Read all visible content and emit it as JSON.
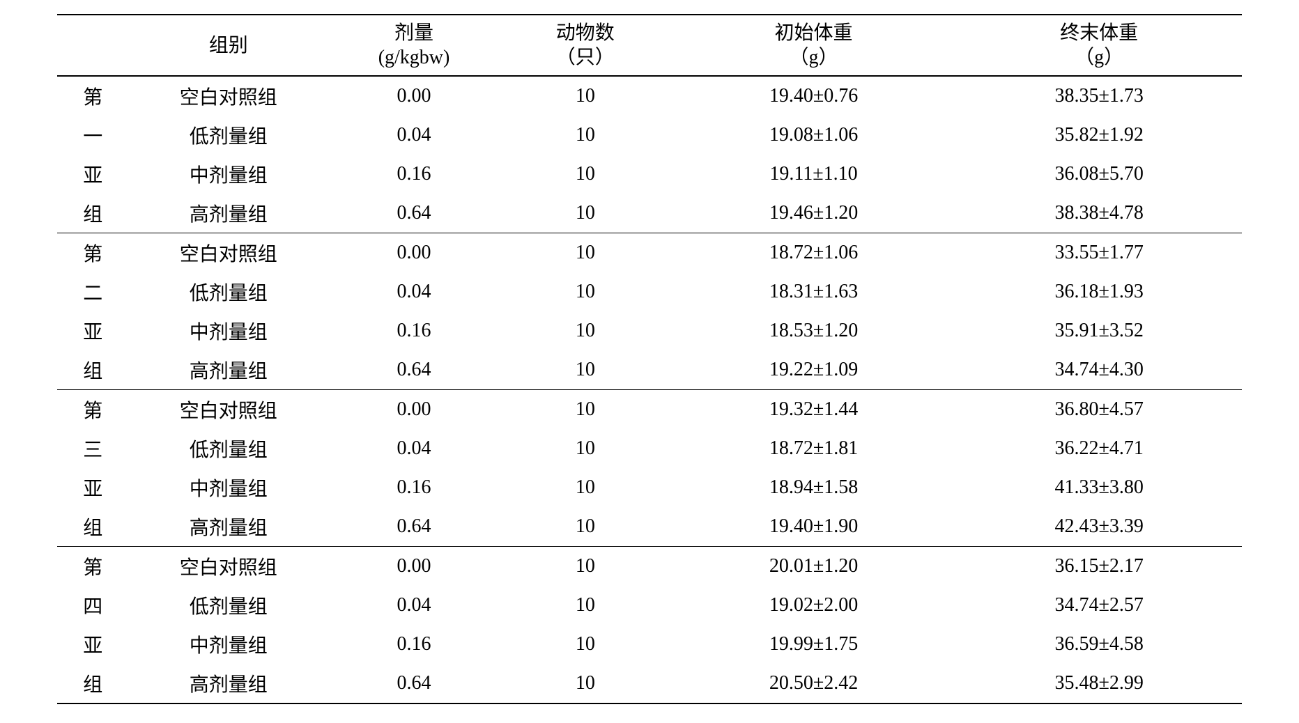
{
  "table": {
    "headers": {
      "group": {
        "line1": "组别",
        "line2": ""
      },
      "dose": {
        "line1": "剂量",
        "line2": "(g/kgbw)"
      },
      "animals": {
        "line1": "动物数",
        "line2": "（只）"
      },
      "init_weight": {
        "line1": "初始体重",
        "line2": "（g）"
      },
      "final_weight": {
        "line1": "终末体重",
        "line2": "（g）"
      }
    },
    "subgroups": [
      {
        "label_chars": [
          "第",
          "一",
          "亚",
          "组"
        ],
        "rows": [
          {
            "group": "空白对照组",
            "dose": "0.00",
            "animals": "10",
            "init_w": "19.40±0.76",
            "final_w": "38.35±1.73"
          },
          {
            "group": "低剂量组",
            "dose": "0.04",
            "animals": "10",
            "init_w": "19.08±1.06",
            "final_w": "35.82±1.92"
          },
          {
            "group": "中剂量组",
            "dose": "0.16",
            "animals": "10",
            "init_w": "19.11±1.10",
            "final_w": "36.08±5.70"
          },
          {
            "group": "高剂量组",
            "dose": "0.64",
            "animals": "10",
            "init_w": "19.46±1.20",
            "final_w": "38.38±4.78"
          }
        ]
      },
      {
        "label_chars": [
          "第",
          "二",
          "亚",
          "组"
        ],
        "rows": [
          {
            "group": "空白对照组",
            "dose": "0.00",
            "animals": "10",
            "init_w": "18.72±1.06",
            "final_w": "33.55±1.77"
          },
          {
            "group": "低剂量组",
            "dose": "0.04",
            "animals": "10",
            "init_w": "18.31±1.63",
            "final_w": "36.18±1.93"
          },
          {
            "group": "中剂量组",
            "dose": "0.16",
            "animals": "10",
            "init_w": "18.53±1.20",
            "final_w": "35.91±3.52"
          },
          {
            "group": "高剂量组",
            "dose": "0.64",
            "animals": "10",
            "init_w": "19.22±1.09",
            "final_w": "34.74±4.30"
          }
        ]
      },
      {
        "label_chars": [
          "第",
          "三",
          "亚",
          "组"
        ],
        "rows": [
          {
            "group": "空白对照组",
            "dose": "0.00",
            "animals": "10",
            "init_w": "19.32±1.44",
            "final_w": "36.80±4.57"
          },
          {
            "group": "低剂量组",
            "dose": "0.04",
            "animals": "10",
            "init_w": "18.72±1.81",
            "final_w": "36.22±4.71"
          },
          {
            "group": "中剂量组",
            "dose": "0.16",
            "animals": "10",
            "init_w": "18.94±1.58",
            "final_w": "41.33±3.80"
          },
          {
            "group": "高剂量组",
            "dose": "0.64",
            "animals": "10",
            "init_w": "19.40±1.90",
            "final_w": "42.43±3.39"
          }
        ]
      },
      {
        "label_chars": [
          "第",
          "四",
          "亚",
          "组"
        ],
        "rows": [
          {
            "group": "空白对照组",
            "dose": "0.00",
            "animals": "10",
            "init_w": "20.01±1.20",
            "final_w": "36.15±2.17"
          },
          {
            "group": "低剂量组",
            "dose": "0.04",
            "animals": "10",
            "init_w": "19.02±2.00",
            "final_w": "34.74±2.57"
          },
          {
            "group": "中剂量组",
            "dose": "0.16",
            "animals": "10",
            "init_w": "19.99±1.75",
            "final_w": "36.59±4.58"
          },
          {
            "group": "高剂量组",
            "dose": "0.64",
            "animals": "10",
            "init_w": "20.50±2.42",
            "final_w": "35.48±2.99"
          }
        ]
      }
    ]
  }
}
